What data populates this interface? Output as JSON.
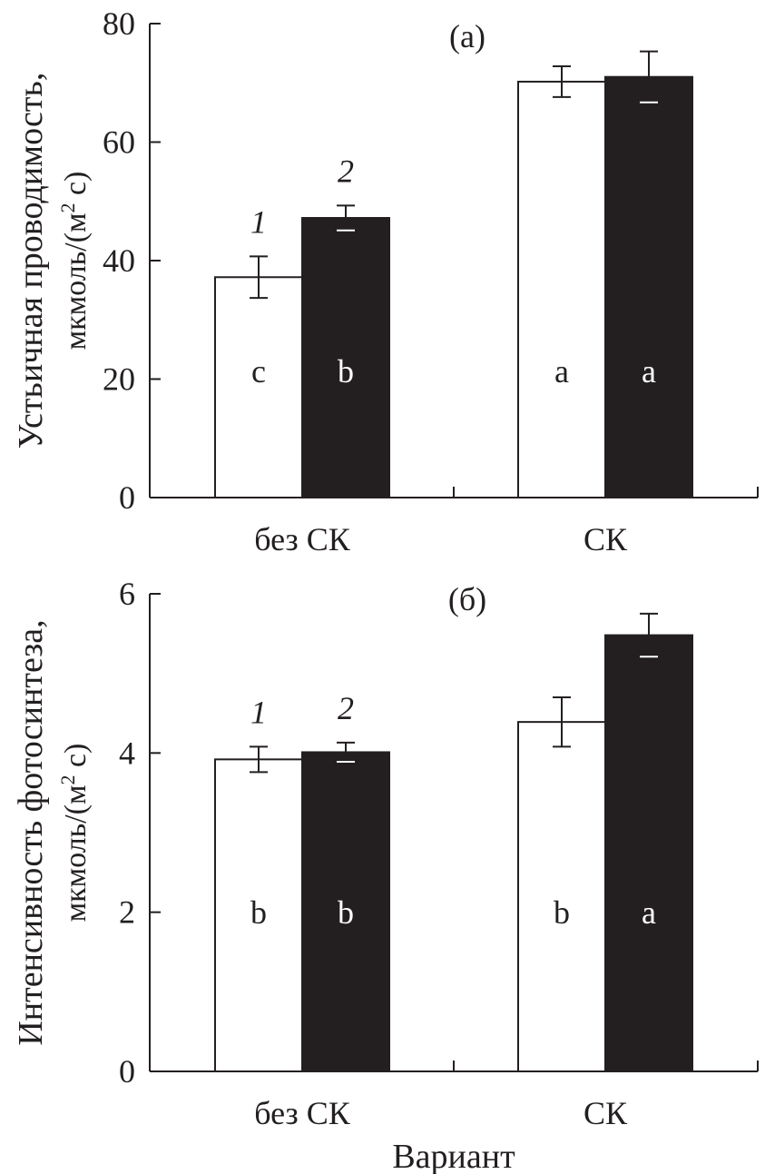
{
  "chart_data": [
    {
      "type": "bar",
      "title": "(а)",
      "ylabel_line1": "Устьичная проводимость,",
      "ylabel_line2": "мкмоль/(м",
      "ylabel_sup": "2",
      "ylabel_end": " с)",
      "xlabel": "",
      "categories": [
        "без СК",
        "СК"
      ],
      "ylim": [
        0,
        80
      ],
      "yticks": [
        0,
        20,
        40,
        60,
        80
      ],
      "series": [
        {
          "name": "1",
          "color": "#ffffff",
          "values": [
            37.2,
            70.2
          ],
          "errors": [
            3.5,
            2.6
          ],
          "letters": [
            "c",
            "a"
          ]
        },
        {
          "name": "2",
          "color": "#231f20",
          "values": [
            47.2,
            71.0
          ],
          "errors": [
            2.1,
            4.3
          ],
          "letters": [
            "b",
            "a"
          ]
        }
      ]
    },
    {
      "type": "bar",
      "title": "(б)",
      "ylabel_line1": "Интенсивность фотосинтеза,",
      "ylabel_line2": "мкмоль/(м",
      "ylabel_sup": "2",
      "ylabel_end": " с)",
      "xlabel": "Вариант",
      "categories": [
        "без СК",
        "СК"
      ],
      "ylim": [
        0,
        6
      ],
      "yticks": [
        0,
        2,
        4,
        6
      ],
      "series": [
        {
          "name": "1",
          "color": "#ffffff",
          "values": [
            3.92,
            4.39
          ],
          "errors": [
            0.16,
            0.31
          ],
          "letters": [
            "b",
            "b"
          ]
        },
        {
          "name": "2",
          "color": "#231f20",
          "values": [
            4.01,
            5.48
          ],
          "errors": [
            0.12,
            0.27
          ],
          "letters": [
            "b",
            "a"
          ]
        }
      ]
    }
  ]
}
